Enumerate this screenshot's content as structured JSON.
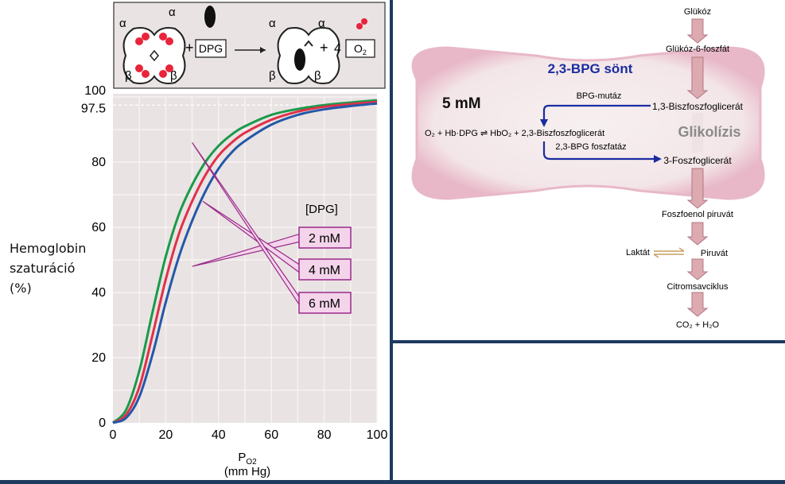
{
  "reaction": {
    "alpha": "α",
    "beta": "β",
    "plus": "+",
    "dpg_box": "DPG",
    "coef": "4",
    "o2_base": "O",
    "o2_sub": "2"
  },
  "chart_data": {
    "type": "line",
    "ylabel_lines": [
      "Hemoglobin",
      "szaturáció",
      "(%)"
    ],
    "xlabel": "P",
    "xlabel_sub": "O2",
    "xlabel_unit": "(mm Hg)",
    "xlim": [
      0,
      100
    ],
    "ylim": [
      0,
      100
    ],
    "xticks": [
      0,
      20,
      40,
      60,
      80,
      100
    ],
    "yticks": [
      0,
      20,
      40,
      60,
      80,
      100
    ],
    "ytick_extra": "97.5",
    "reference_line_y": 97.5,
    "grid": true,
    "legend_title": "[DPG]",
    "series": [
      {
        "name": "2 mM",
        "color": "#1a9a4a",
        "x": [
          0,
          5,
          10,
          15,
          20,
          25,
          30,
          35,
          40,
          45,
          50,
          60,
          70,
          80,
          90,
          100
        ],
        "y": [
          0,
          4,
          16,
          34,
          51,
          64,
          73,
          80,
          85,
          88.5,
          91,
          94.5,
          96.3,
          97.5,
          98.3,
          99
        ]
      },
      {
        "name": "4 mM",
        "color": "#e0304a",
        "x": [
          0,
          5,
          10,
          15,
          20,
          25,
          30,
          35,
          40,
          45,
          50,
          60,
          70,
          80,
          90,
          100
        ],
        "y": [
          0,
          2.5,
          11,
          27,
          44,
          58,
          68,
          76,
          82,
          86,
          89,
          93,
          95.5,
          97,
          97.8,
          98.5
        ]
      },
      {
        "name": "6 mM",
        "color": "#2458a8",
        "x": [
          0,
          5,
          10,
          15,
          20,
          25,
          30,
          35,
          40,
          45,
          50,
          60,
          70,
          80,
          90,
          100
        ],
        "y": [
          0,
          1.5,
          8,
          21,
          37,
          51,
          62,
          71,
          78,
          83,
          86.5,
          91.5,
          94.5,
          96.2,
          97.2,
          98
        ]
      }
    ]
  },
  "pathway": {
    "shunt_title": "2,3-BPG sönt",
    "concentration": "5 mM",
    "equilibrium": "O₂ + Hb·DPG ⇌ HbO₂ + 2,3-Biszfoszfoglicerát",
    "mutase": "BPG-mutáz",
    "phosphatase": "2,3-BPG foszfatáz",
    "glycolysis_label": "Glikolízis",
    "steps": [
      "Glükóz",
      "Glükóz-6-foszfát",
      "1,3-Biszfoszfoglicerát",
      "3-Foszfoglicerát",
      "Foszfoenol piruvát",
      "Piruvát",
      "Citromsavciklus",
      "CO₂ + H₂O"
    ],
    "lactate": "Laktát"
  },
  "colors": {
    "panel_bg": "#e9e3e3",
    "arrow_pink": "#dcaab0",
    "arrow_border": "#b07880",
    "shunt_blue": "#1b2ca0",
    "grid": "#f2eded",
    "label_box": "#f4d4ea",
    "label_border": "#9a2a8a",
    "cell_fill": "#f6eeee",
    "cell_edge": "#e8b8c8",
    "bg_blue": "#1e3a5f"
  }
}
